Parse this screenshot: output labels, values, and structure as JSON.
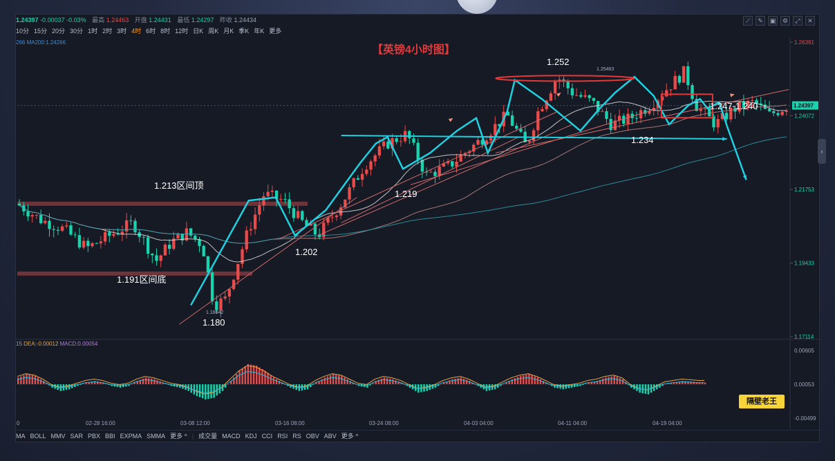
{
  "header": {
    "price": "1.24397",
    "change": "-0.00037",
    "change_pct": "-0.03%",
    "high_label": "最高",
    "high": "1.24463",
    "open_label": "开盘",
    "open": "1.24431",
    "low_label": "最低",
    "low": "1.24297",
    "prev_label": "昨收",
    "prev": "1.24434"
  },
  "periods": [
    "10分",
    "15分",
    "20分",
    "30分",
    "1时",
    "2时",
    "3时",
    "4时",
    "6时",
    "8时",
    "12时",
    "日K",
    "周K",
    "月K",
    "季K",
    "年K",
    "更多"
  ],
  "active_period": "4时",
  "ma_legend": {
    "left": "266",
    "ma200": "MA200:1.24266"
  },
  "macd_legend": {
    "prefix": "15",
    "dea": "DEA:-0.00012",
    "macd": "MACD:0.00054"
  },
  "bottom_indicators_left": [
    "MA",
    "BOLL",
    "MMV",
    "SAR",
    "PBX",
    "BBI",
    "EXPMA",
    "SMMA",
    "更多 ^"
  ],
  "bottom_indicators_right": [
    "成交量",
    "MACD",
    "KDJ",
    "CCI",
    "RSI",
    "RS",
    "OBV",
    "ABV",
    "更多 ^"
  ],
  "badge": "隔壁老王",
  "colors": {
    "up": "#e74c4c",
    "down": "#19d2ae",
    "annot": "#21d0e0",
    "bg": "#151a24"
  },
  "chart_data": {
    "type": "candlestick",
    "title": "【英镑4小时图】",
    "y_axis_ticks": [
      "1.26391",
      "1.24072",
      "1.21753",
      "1.19433",
      "1.17114"
    ],
    "y_axis_values": [
      1.26391,
      1.24072,
      1.21753,
      1.19433,
      1.17114
    ],
    "ylim": [
      1.17114,
      1.26391
    ],
    "current_price_tag": "1.24397",
    "current_price": 1.24397,
    "x_ticks": [
      "02-28 16:00",
      "03-08 12:00",
      "03-16 08:00",
      "03-24 08:00",
      "04-03 04:00",
      "04-11 04:00",
      "04-19 04:00"
    ],
    "x_tick_left": "0",
    "path_points": [
      {
        "t": 0.0,
        "y": 1.213
      },
      {
        "t": 0.03,
        "y": 1.208
      },
      {
        "t": 0.06,
        "y": 1.205
      },
      {
        "t": 0.09,
        "y": 1.199
      },
      {
        "t": 0.12,
        "y": 1.203
      },
      {
        "t": 0.15,
        "y": 1.207
      },
      {
        "t": 0.18,
        "y": 1.195
      },
      {
        "t": 0.2,
        "y": 1.201
      },
      {
        "t": 0.22,
        "y": 1.204
      },
      {
        "t": 0.24,
        "y": 1.2
      },
      {
        "t": 0.255,
        "y": 1.181
      },
      {
        "t": 0.27,
        "y": 1.183
      },
      {
        "t": 0.3,
        "y": 1.205
      },
      {
        "t": 0.32,
        "y": 1.216
      },
      {
        "t": 0.345,
        "y": 1.214
      },
      {
        "t": 0.37,
        "y": 1.207
      },
      {
        "t": 0.39,
        "y": 1.203
      },
      {
        "t": 0.42,
        "y": 1.213
      },
      {
        "t": 0.45,
        "y": 1.225
      },
      {
        "t": 0.48,
        "y": 1.232
      },
      {
        "t": 0.505,
        "y": 1.235
      },
      {
        "t": 0.53,
        "y": 1.222
      },
      {
        "t": 0.56,
        "y": 1.225
      },
      {
        "t": 0.6,
        "y": 1.233
      },
      {
        "t": 0.635,
        "y": 1.241
      },
      {
        "t": 0.66,
        "y": 1.231
      },
      {
        "t": 0.675,
        "y": 1.242
      },
      {
        "t": 0.7,
        "y": 1.253
      },
      {
        "t": 0.72,
        "y": 1.248
      },
      {
        "t": 0.745,
        "y": 1.245
      },
      {
        "t": 0.77,
        "y": 1.238
      },
      {
        "t": 0.795,
        "y": 1.24
      },
      {
        "t": 0.82,
        "y": 1.244
      },
      {
        "t": 0.845,
        "y": 1.25
      },
      {
        "t": 0.865,
        "y": 1.2546
      },
      {
        "t": 0.88,
        "y": 1.244
      },
      {
        "t": 0.905,
        "y": 1.238
      },
      {
        "t": 0.93,
        "y": 1.243
      },
      {
        "t": 0.955,
        "y": 1.245
      },
      {
        "t": 0.975,
        "y": 1.241
      },
      {
        "t": 1.0,
        "y": 1.244
      }
    ],
    "annotations": [
      {
        "text": "1.252",
        "y": 1.252
      },
      {
        "text": "1.25463",
        "y": 1.25463
      },
      {
        "text": "1.247-1.240"
      },
      {
        "text": "1.234",
        "y": 1.234
      },
      {
        "text": "1.219",
        "y": 1.219
      },
      {
        "text": "1.213区间顶",
        "y": 1.213
      },
      {
        "text": "1.202",
        "y": 1.202
      },
      {
        "text": "1.191区间底",
        "y": 1.191
      },
      {
        "text": "1.18042",
        "y": 1.18042
      },
      {
        "text": "1.180",
        "y": 1.18
      }
    ],
    "macd_y_ticks": [
      "0.00605",
      "0.00053",
      "-0.00499"
    ],
    "macd_y_values": [
      0.00605,
      0.00053,
      -0.00499
    ],
    "macd_hist": [
      0.2,
      0.3,
      0.25,
      0.1,
      -0.1,
      -0.2,
      -0.15,
      -0.05,
      0.05,
      0.1,
      0.05,
      -0.05,
      -0.1,
      -0.05,
      0.1,
      0.2,
      0.15,
      0.05,
      -0.05,
      -0.1,
      -0.2,
      -0.35,
      -0.45,
      -0.4,
      -0.2,
      0.1,
      0.4,
      0.6,
      0.55,
      0.4,
      0.2,
      0.05,
      -0.1,
      -0.2,
      -0.15,
      0.05,
      0.2,
      0.3,
      0.25,
      0.1,
      -0.05,
      -0.1,
      0.1,
      0.2,
      0.15,
      0.05,
      -0.1,
      -0.25,
      -0.2,
      -0.1,
      0.05,
      0.15,
      0.2,
      0.1,
      -0.05,
      -0.2,
      -0.15,
      0.0,
      0.15,
      0.25,
      0.3,
      0.2,
      0.05,
      -0.1,
      -0.15,
      -0.1,
      -0.05,
      0.05,
      0.1,
      0.2,
      0.25,
      0.15,
      -0.1,
      -0.25,
      -0.3,
      -0.15,
      0.0,
      0.05,
      0.1,
      0.08,
      0.05
    ]
  }
}
